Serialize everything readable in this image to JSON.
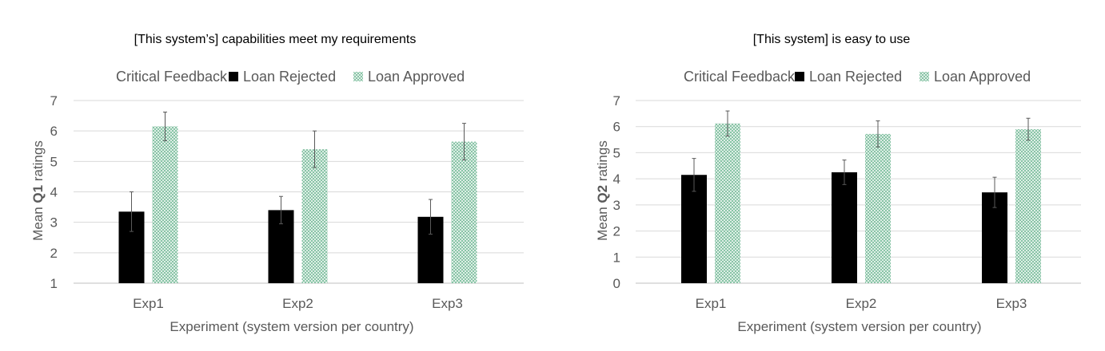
{
  "chart_data": [
    {
      "type": "bar",
      "title": "[This system’s] capabilities meet my requirements",
      "legend_title": "Critical Feedback",
      "legend_position": "top",
      "xlabel": "Experiment (system version per country)",
      "ylabel_prefix": "Mean ",
      "ylabel_bold": "Q1",
      "ylabel_suffix": " ratings",
      "categories": [
        "Exp1",
        "Exp2",
        "Exp3"
      ],
      "ylim": [
        1,
        7
      ],
      "yticks": [
        1,
        2,
        3,
        4,
        5,
        6,
        7
      ],
      "grid": true,
      "series": [
        {
          "name": "Loan Rejected",
          "color": "#000000",
          "pattern": "solid",
          "values": [
            3.35,
            3.4,
            3.18
          ],
          "error": [
            0.65,
            0.45,
            0.57
          ]
        },
        {
          "name": "Loan Approved",
          "color": "#7fbf9f",
          "pattern": "crosshatch",
          "values": [
            6.15,
            5.4,
            5.65
          ],
          "error": [
            0.47,
            0.6,
            0.6
          ]
        }
      ]
    },
    {
      "type": "bar",
      "title": "[This system] is easy to use",
      "legend_title": "Critical Feedback",
      "legend_position": "top",
      "xlabel": "Experiment (system version per country)",
      "ylabel_prefix": "Mean ",
      "ylabel_bold": "Q2",
      "ylabel_suffix": " ratings",
      "categories": [
        "Exp1",
        "Exp2",
        "Exp3"
      ],
      "ylim": [
        0,
        7
      ],
      "yticks": [
        0,
        1,
        2,
        3,
        4,
        5,
        6,
        7
      ],
      "grid": true,
      "series": [
        {
          "name": "Loan Rejected",
          "color": "#000000",
          "pattern": "solid",
          "values": [
            4.15,
            4.25,
            3.48
          ],
          "error": [
            0.63,
            0.47,
            0.58
          ]
        },
        {
          "name": "Loan Approved",
          "color": "#7fbf9f",
          "pattern": "crosshatch",
          "values": [
            6.12,
            5.72,
            5.9
          ],
          "error": [
            0.48,
            0.5,
            0.42
          ]
        }
      ]
    }
  ]
}
